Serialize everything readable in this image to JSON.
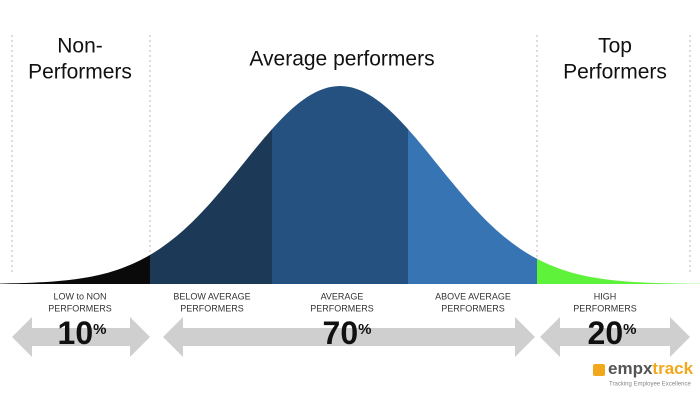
{
  "headings": [
    {
      "lines": [
        "Non-",
        "Performers"
      ]
    },
    {
      "lines": [
        "Average performers"
      ]
    },
    {
      "lines": [
        "Top",
        "Performers"
      ]
    }
  ],
  "segments": [
    {
      "lines": [
        "LOW to NON",
        "PERFORMERS"
      ]
    },
    {
      "lines": [
        "BELOW AVERAGE",
        "PERFORMERS"
      ]
    },
    {
      "lines": [
        "AVERAGE",
        "PERFORMERS"
      ]
    },
    {
      "lines": [
        "ABOVE AVERAGE",
        "PERFORMERS"
      ]
    },
    {
      "lines": [
        "HIGH",
        "PERFORMERS"
      ]
    }
  ],
  "percentages": [
    {
      "value": "10",
      "unit": "%"
    },
    {
      "value": "70",
      "unit": "%"
    },
    {
      "value": "20",
      "unit": "%"
    }
  ],
  "logo": {
    "name": [
      "empx",
      "track"
    ],
    "tagline": "Tracking Employee Excellence"
  }
}
